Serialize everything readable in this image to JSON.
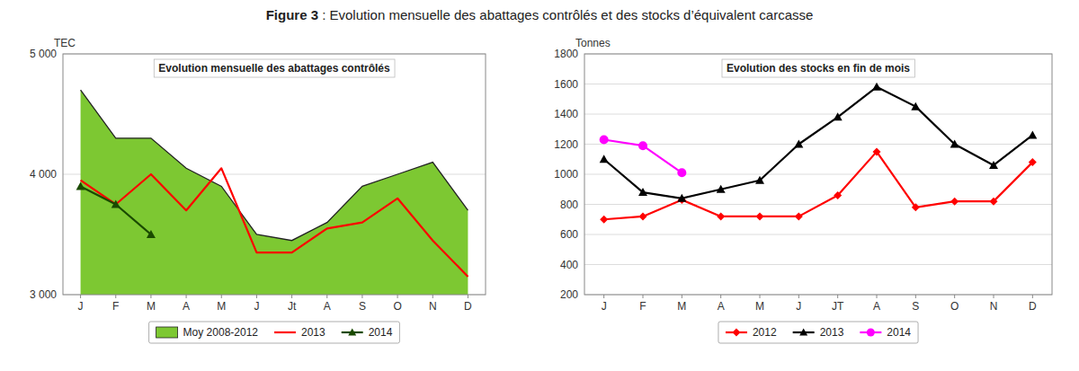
{
  "title": "Figure 3",
  "subtitle": " : Evolution mensuelle des abattages contrôlés et des stocks d’équivalent carcasse",
  "chart_data": [
    {
      "type": "line",
      "title": "Evolution mensuelle des abattages contrôlés",
      "ylabel": "TEC",
      "categories": [
        "J",
        "F",
        "M",
        "A",
        "M",
        "J",
        "Jt",
        "A",
        "S",
        "O",
        "N",
        "D"
      ],
      "ylim": [
        3000,
        5000
      ],
      "yticks": [
        {
          "value": 3000,
          "label": "3 000"
        },
        {
          "value": 4000,
          "label": "4 000"
        },
        {
          "value": 5000,
          "label": "5 000"
        }
      ],
      "grid": true,
      "legend": "bottom",
      "series": [
        {
          "name": "Moy 2008-2012",
          "type": "area",
          "color": "#7dc832",
          "values": [
            4700,
            4300,
            4300,
            4050,
            3900,
            3500,
            3450,
            3600,
            3900,
            4000,
            4100,
            3700
          ]
        },
        {
          "name": "2013",
          "type": "line",
          "color": "#ff0000",
          "values": [
            3950,
            3750,
            4000,
            3700,
            4050,
            3350,
            3350,
            3550,
            3600,
            3800,
            3450,
            3150
          ]
        },
        {
          "name": "2014",
          "type": "line",
          "color": "#1a4a00",
          "marker": "triangle",
          "values": [
            3900,
            3750,
            3500,
            null,
            null,
            null,
            null,
            null,
            null,
            null,
            null,
            null
          ]
        }
      ]
    },
    {
      "type": "line",
      "title": "Evolution des stocks en fin de mois",
      "ylabel": "Tonnes",
      "categories": [
        "J",
        "F",
        "M",
        "A",
        "M",
        "J",
        "JT",
        "A",
        "S",
        "O",
        "N",
        "D"
      ],
      "ylim": [
        200,
        1800
      ],
      "yticks": [
        200,
        400,
        600,
        800,
        1000,
        1200,
        1400,
        1600,
        1800
      ],
      "grid": true,
      "legend": "bottom",
      "series": [
        {
          "name": "2012",
          "type": "line",
          "color": "#ff0000",
          "marker": "diamond",
          "values": [
            700,
            720,
            830,
            720,
            720,
            720,
            860,
            1150,
            780,
            820,
            820,
            1080
          ]
        },
        {
          "name": "2013",
          "type": "line",
          "color": "#000000",
          "marker": "triangle",
          "values": [
            1100,
            880,
            840,
            900,
            960,
            1200,
            1380,
            1580,
            1450,
            1200,
            1060,
            1260
          ]
        },
        {
          "name": "2014",
          "type": "line",
          "color": "#ff00ff",
          "marker": "circle",
          "values": [
            1230,
            1190,
            1010,
            null,
            null,
            null,
            null,
            null,
            null,
            null,
            null,
            null
          ]
        }
      ]
    }
  ]
}
